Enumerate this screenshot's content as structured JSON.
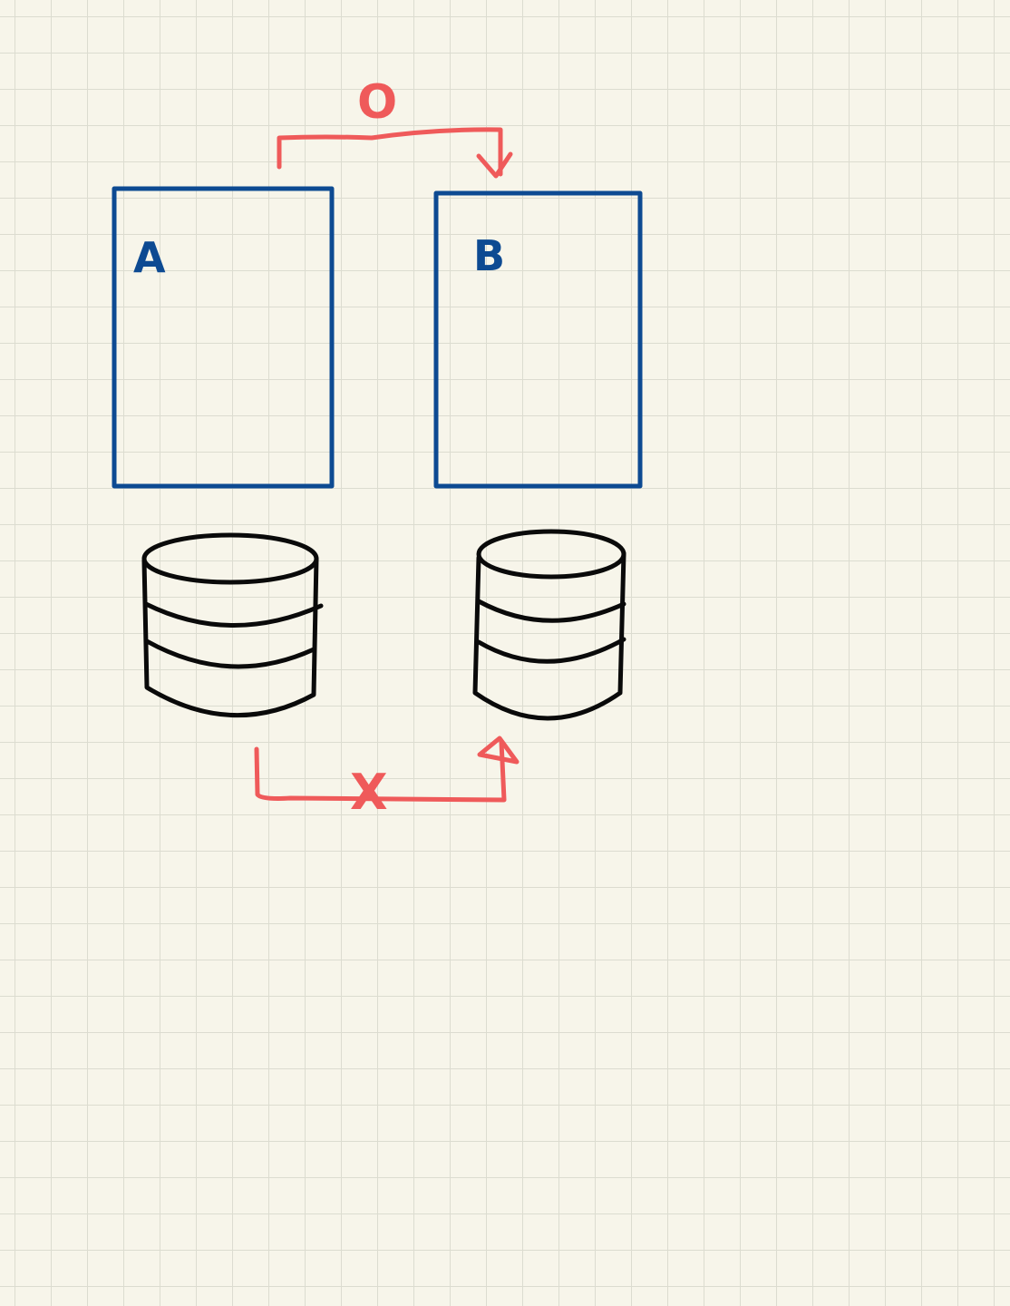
{
  "diagram": {
    "service_a": {
      "label": "A"
    },
    "service_b": {
      "label": "B"
    },
    "top_arrow": {
      "label": "O"
    },
    "bottom_arrow": {
      "label": "X"
    },
    "colors": {
      "service": "#0d4a92",
      "arrow": "#ef5a5a",
      "database": "#0a0a0a",
      "paper": "#f7f5ea",
      "grid": "#dcdcd0"
    }
  }
}
